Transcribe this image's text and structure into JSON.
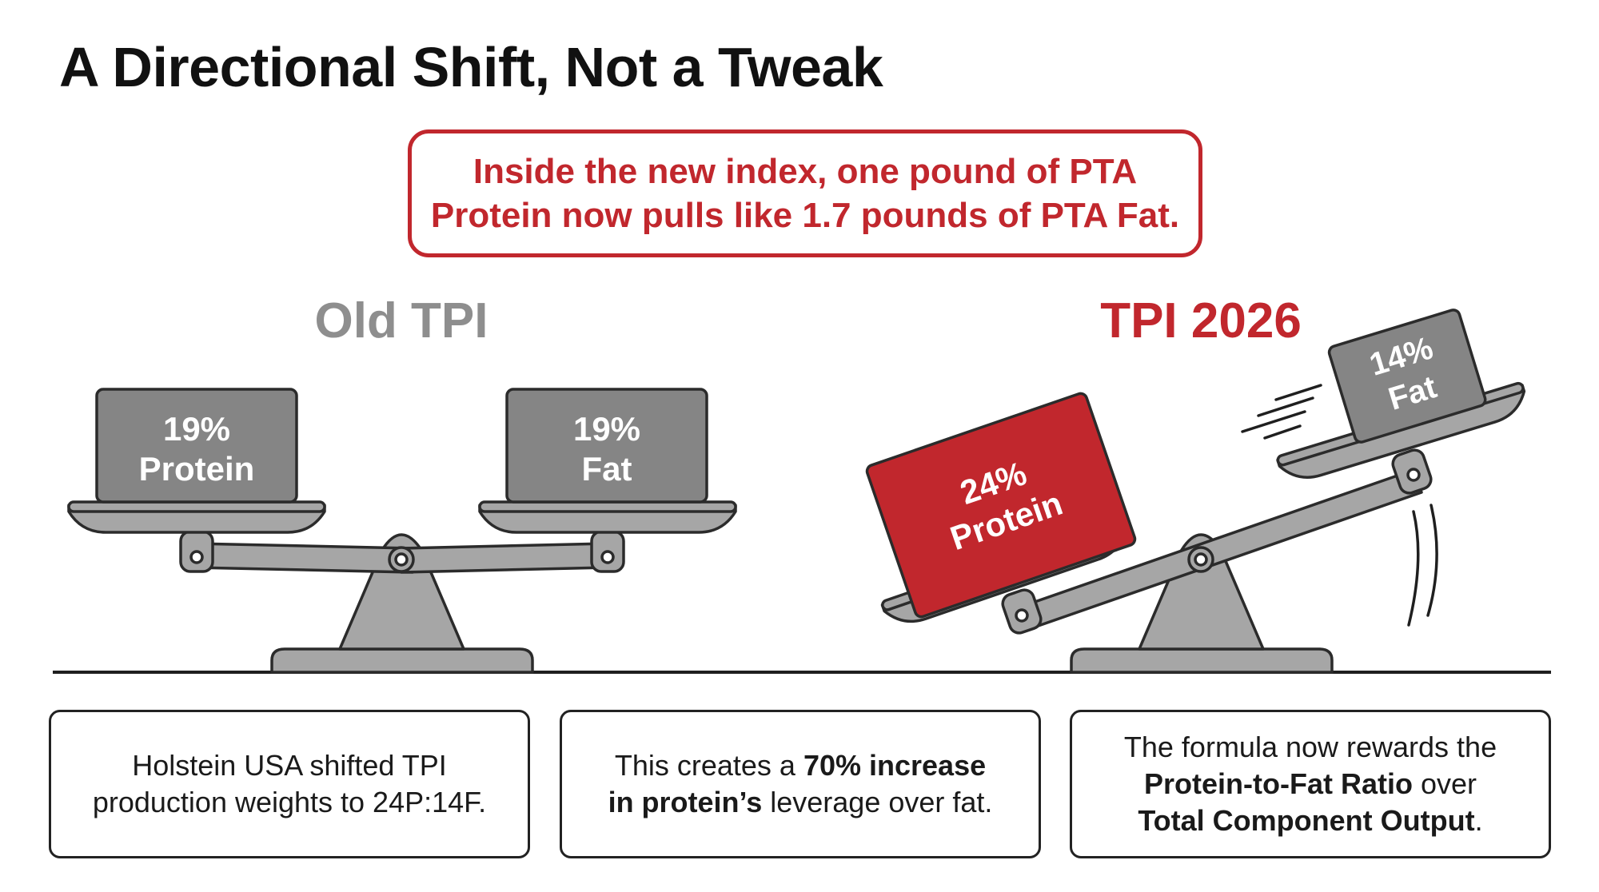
{
  "title": "A Directional Shift, Not a Tweak",
  "callout": {
    "line1": "Inside the new index, one pound of PTA",
    "line2": "Protein now pulls like 1.7 pounds of PTA Fat."
  },
  "old_scale": {
    "heading": "Old TPI",
    "left_weight": {
      "percent": "19%",
      "label": "Protein"
    },
    "right_weight": {
      "percent": "19%",
      "label": "Fat"
    }
  },
  "new_scale": {
    "heading": "TPI 2026",
    "left_weight": {
      "percent": "24%",
      "label": "Protein"
    },
    "right_weight": {
      "percent": "14%",
      "label": "Fat"
    }
  },
  "info_boxes": [
    {
      "line1": "Holstein USA shifted TPI",
      "line2": "production weights to 24P:14F."
    },
    {
      "line1_pre": "This creates a ",
      "line1_bold": "70% increase",
      "line2_bold": "in protein’s",
      "line2_post": " leverage over fat."
    },
    {
      "line1": "The formula now rewards the",
      "line2_bold": "Protein-to-Fat Ratio",
      "line2_post": " over",
      "line3_bold": "Total Component Output",
      "line3_post": "."
    }
  ],
  "colors": {
    "accent_red": "#c1272d",
    "scale_gray": "#a6a6a6",
    "weight_gray": "#858585",
    "heading_gray": "#8e8e8e",
    "outline": "#2b2b2b"
  }
}
